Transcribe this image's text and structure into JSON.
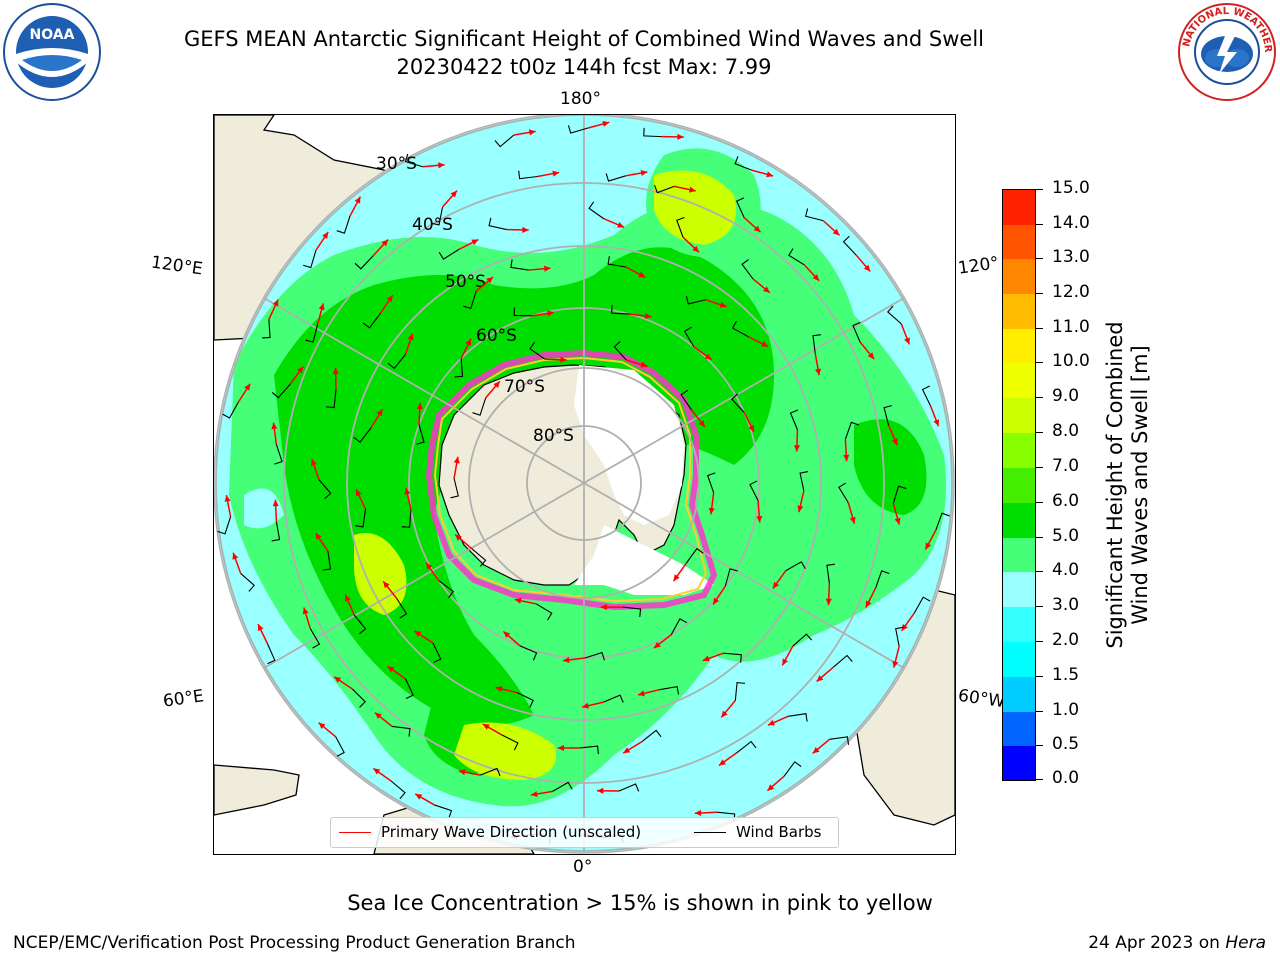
{
  "header": {
    "title_line1": "GEFS MEAN Antarctic Significant Height of Combined Wind Waves and Swell",
    "title_line2": "20230422 t00z 144h fcst   Max: 7.99"
  },
  "logos": {
    "left": "NOAA",
    "right": "NATIONAL WEATHER SERVICE"
  },
  "map": {
    "projection": "south polar stereographic",
    "lon_labels": {
      "top": "180°",
      "bottom": "0°",
      "upper_left": "120°E",
      "lower_left": "60°E",
      "upper_right": "120°",
      "lower_right": "60°W"
    },
    "lat_labels": [
      "30°S",
      "40°S",
      "50°S",
      "60°S",
      "70°S",
      "80°S"
    ],
    "legend": {
      "wave": "Primary Wave Direction (unscaled)",
      "wind": "Wind Barbs"
    },
    "colors": {
      "wave_arrow": "#ff0000",
      "wind_barb": "#000000",
      "land": "#efecdc",
      "ice_edge": "#ff33cc"
    }
  },
  "colorbar": {
    "title_line1": "Significant Height of Combined",
    "title_line2": "Wind Waves and Swell [m]",
    "ticks": [
      "0.0",
      "0.5",
      "1.0",
      "1.5",
      "2.0",
      "3.0",
      "4.0",
      "5.0",
      "6.0",
      "7.0",
      "8.0",
      "9.0",
      "10.0",
      "11.0",
      "12.0",
      "13.0",
      "14.0",
      "15.0"
    ],
    "colors": [
      "#0000ff",
      "#0066ff",
      "#00ccff",
      "#00ffff",
      "#33ffff",
      "#99ffff",
      "#44ff77",
      "#00dd00",
      "#44ee00",
      "#88ff00",
      "#ccff00",
      "#eeff00",
      "#ffee00",
      "#ffbb00",
      "#ff8800",
      "#ff5500",
      "#ff2200"
    ]
  },
  "caption": "Sea Ice Concentration > 15% is shown in pink to yellow",
  "footer": {
    "left": "NCEP/EMC/Verification Post Processing Product Generation Branch",
    "right_date": "24 Apr 2023 on ",
    "right_host": "Hera"
  }
}
